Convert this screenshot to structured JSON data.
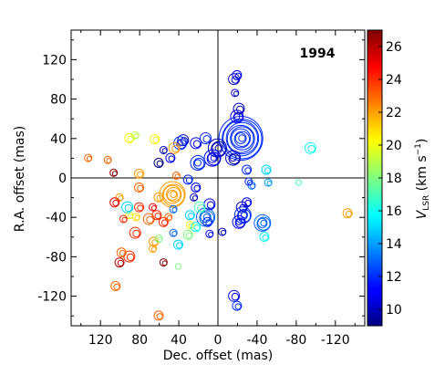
{
  "chart_data": {
    "type": "scatter",
    "annotation": "1994",
    "xlabel": "Dec. offset (mas)",
    "ylabel": "R.A. offset (mas)",
    "x_reversed": true,
    "xlim": [
      150,
      -150
    ],
    "ylim": [
      -150,
      150
    ],
    "xticks": [
      120,
      80,
      40,
      0,
      -40,
      -80,
      -120
    ],
    "yticks": [
      120,
      80,
      40,
      0,
      -40,
      -80,
      -120
    ],
    "colorbar": {
      "label": "V_LSR (km s^-1)",
      "label_main": "V",
      "label_sub": "LSR",
      "label_unit": "(km s",
      "label_sup": "−1",
      "label_close": ")",
      "range": [
        9,
        27
      ],
      "ticks": [
        10,
        12,
        14,
        16,
        18,
        20,
        22,
        24,
        26
      ],
      "colormap": "jet"
    },
    "points": [
      {
        "x": -24,
        "y": 40,
        "v": 12,
        "s": 24
      },
      {
        "x": -16,
        "y": 20,
        "v": 10,
        "s": 8
      },
      {
        "x": -20,
        "y": 62,
        "v": 11,
        "s": 7
      },
      {
        "x": -22,
        "y": 70,
        "v": 10,
        "s": 6
      },
      {
        "x": -17,
        "y": 100,
        "v": 10,
        "s": 6
      },
      {
        "x": -20,
        "y": 104,
        "v": 11,
        "s": 5
      },
      {
        "x": -18,
        "y": 86,
        "v": 10,
        "s": 4
      },
      {
        "x": 0,
        "y": 30,
        "v": 10,
        "s": 10
      },
      {
        "x": 5,
        "y": 20,
        "v": 11,
        "s": 9
      },
      {
        "x": 20,
        "y": 15,
        "v": 12,
        "s": 8
      },
      {
        "x": 35,
        "y": 38,
        "v": 10,
        "s": 6
      },
      {
        "x": 38,
        "y": 35,
        "v": 12,
        "s": 7
      },
      {
        "x": 22,
        "y": 35,
        "v": 11,
        "s": 6
      },
      {
        "x": 48,
        "y": 20,
        "v": 11,
        "s": 5
      },
      {
        "x": 12,
        "y": 40,
        "v": 12,
        "s": 6
      },
      {
        "x": 55,
        "y": 28,
        "v": 10,
        "s": 4
      },
      {
        "x": 44,
        "y": 30,
        "v": 22,
        "s": 6
      },
      {
        "x": 64,
        "y": 39,
        "v": 20,
        "s": 5
      },
      {
        "x": 60,
        "y": 15,
        "v": 9,
        "s": 5
      },
      {
        "x": 46,
        "y": -17,
        "v": 22,
        "s": 14
      },
      {
        "x": 42,
        "y": 2,
        "v": 23,
        "s": 4
      },
      {
        "x": 30,
        "y": -2,
        "v": 12,
        "s": 5
      },
      {
        "x": 22,
        "y": -10,
        "v": 11,
        "s": 5
      },
      {
        "x": 24,
        "y": -20,
        "v": 10,
        "s": 4
      },
      {
        "x": 12,
        "y": -40,
        "v": 13,
        "s": 10
      },
      {
        "x": 8,
        "y": -27,
        "v": 11,
        "s": 6
      },
      {
        "x": 10,
        "y": -45,
        "v": 12,
        "s": 5
      },
      {
        "x": 28,
        "y": -38,
        "v": 15,
        "s": 5
      },
      {
        "x": 18,
        "y": -30,
        "v": 17,
        "s": 6
      },
      {
        "x": 45,
        "y": -32,
        "v": 13,
        "s": 4
      },
      {
        "x": 40,
        "y": -68,
        "v": 15,
        "s": 5
      },
      {
        "x": 45,
        "y": -56,
        "v": 13,
        "s": 4
      },
      {
        "x": 30,
        "y": -58,
        "v": 18,
        "s": 5
      },
      {
        "x": 28,
        "y": -48,
        "v": 20,
        "s": 4
      },
      {
        "x": 22,
        "y": -50,
        "v": 16,
        "s": 5
      },
      {
        "x": 55,
        "y": -45,
        "v": 24,
        "s": 5
      },
      {
        "x": 50,
        "y": -40,
        "v": 23,
        "s": 4
      },
      {
        "x": 70,
        "y": -42,
        "v": 23,
        "s": 6
      },
      {
        "x": 62,
        "y": -38,
        "v": 24,
        "s": 5
      },
      {
        "x": 65,
        "y": -65,
        "v": 22,
        "s": 5
      },
      {
        "x": 66,
        "y": -72,
        "v": 22,
        "s": 4
      },
      {
        "x": 60,
        "y": -62,
        "v": 18,
        "s": 4
      },
      {
        "x": 55,
        "y": -86,
        "v": 27,
        "s": 4
      },
      {
        "x": 60,
        "y": -140,
        "v": 23,
        "s": 5
      },
      {
        "x": 80,
        "y": -30,
        "v": 24,
        "s": 5
      },
      {
        "x": 80,
        "y": -10,
        "v": 23,
        "s": 5
      },
      {
        "x": 80,
        "y": 4,
        "v": 22,
        "s": 5
      },
      {
        "x": 83,
        "y": -40,
        "v": 21,
        "s": 4
      },
      {
        "x": 84,
        "y": -56,
        "v": 24,
        "s": 6
      },
      {
        "x": 90,
        "y": -38,
        "v": 20,
        "s": 4
      },
      {
        "x": 92,
        "y": -30,
        "v": 15,
        "s": 6
      },
      {
        "x": 96,
        "y": -42,
        "v": 24,
        "s": 4
      },
      {
        "x": 90,
        "y": -80,
        "v": 24,
        "s": 6
      },
      {
        "x": 98,
        "y": -76,
        "v": 23,
        "s": 5
      },
      {
        "x": 100,
        "y": -20,
        "v": 22,
        "s": 4
      },
      {
        "x": 105,
        "y": -25,
        "v": 25,
        "s": 5
      },
      {
        "x": 100,
        "y": -86,
        "v": 26,
        "s": 5
      },
      {
        "x": 104,
        "y": -110,
        "v": 23,
        "s": 5
      },
      {
        "x": 90,
        "y": 40,
        "v": 20,
        "s": 5
      },
      {
        "x": 84,
        "y": 43,
        "v": 19,
        "s": 4
      },
      {
        "x": 112,
        "y": 18,
        "v": 23,
        "s": 4
      },
      {
        "x": 106,
        "y": 5,
        "v": 27,
        "s": 4
      },
      {
        "x": 132,
        "y": 20,
        "v": 23,
        "s": 4
      },
      {
        "x": -30,
        "y": -25,
        "v": 11,
        "s": 5
      },
      {
        "x": -25,
        "y": -30,
        "v": 10,
        "s": 6
      },
      {
        "x": -26,
        "y": -38,
        "v": 12,
        "s": 9
      },
      {
        "x": -22,
        "y": -45,
        "v": 11,
        "s": 7
      },
      {
        "x": -30,
        "y": 8,
        "v": 12,
        "s": 5
      },
      {
        "x": -35,
        "y": -8,
        "v": 13,
        "s": 4
      },
      {
        "x": -32,
        "y": -4,
        "v": 12,
        "s": 4
      },
      {
        "x": -46,
        "y": -46,
        "v": 13,
        "s": 9
      },
      {
        "x": -48,
        "y": -60,
        "v": 16,
        "s": 5
      },
      {
        "x": -50,
        "y": 8,
        "v": 15,
        "s": 5
      },
      {
        "x": -52,
        "y": -5,
        "v": 14,
        "s": 4
      },
      {
        "x": -95,
        "y": 30,
        "v": 16,
        "s": 6
      },
      {
        "x": -83,
        "y": -5,
        "v": 17,
        "s": 3
      },
      {
        "x": -17,
        "y": -120,
        "v": 11,
        "s": 6
      },
      {
        "x": -20,
        "y": -130,
        "v": 12,
        "s": 5
      },
      {
        "x": -133,
        "y": -36,
        "v": 22,
        "s": 5
      },
      {
        "x": 8,
        "y": -57,
        "v": 11,
        "s": 4
      },
      {
        "x": -5,
        "y": -55,
        "v": 10,
        "s": 4
      },
      {
        "x": 40,
        "y": -90,
        "v": 18,
        "s": 3
      },
      {
        "x": 60,
        "y": -20,
        "v": 22,
        "s": 5
      },
      {
        "x": 66,
        "y": -30,
        "v": 25,
        "s": 4
      }
    ]
  }
}
